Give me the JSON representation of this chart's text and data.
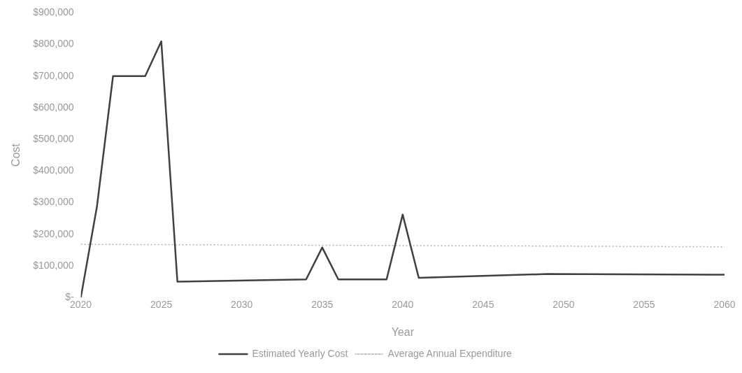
{
  "chart_data": {
    "type": "line",
    "xlabel": "Year",
    "ylabel": "Cost",
    "legend": "bottom",
    "grid": false,
    "marker": "none",
    "xlim": [
      2020,
      2060
    ],
    "xticks": [
      2020,
      2025,
      2030,
      2035,
      2040,
      2045,
      2050,
      2055,
      2060
    ],
    "ylim": [
      0,
      900000
    ],
    "yticks": [
      {
        "value": 0,
        "label": "$-"
      },
      {
        "value": 100000,
        "label": "$100,000"
      },
      {
        "value": 200000,
        "label": "$200,000"
      },
      {
        "value": 300000,
        "label": "$300,000"
      },
      {
        "value": 400000,
        "label": "$400,000"
      },
      {
        "value": 500000,
        "label": "$500,000"
      },
      {
        "value": 600000,
        "label": "$600,000"
      },
      {
        "value": 700000,
        "label": "$700,000"
      },
      {
        "value": 800000,
        "label": "$800,000"
      },
      {
        "value": 900000,
        "label": "$900,000"
      }
    ],
    "series": [
      {
        "name": "Estimated Yearly Cost",
        "color": "#404040",
        "line_style": "solid",
        "x": [
          2020,
          2021,
          2022,
          2024,
          2025,
          2026,
          2034,
          2035,
          2036,
          2039,
          2040,
          2041,
          2049,
          2060
        ],
        "values": [
          0,
          287000,
          700000,
          700000,
          810000,
          50000,
          57000,
          158000,
          57000,
          57000,
          262000,
          62000,
          74000,
          72000
        ]
      },
      {
        "name": "Average Annual Expenditure",
        "color": "#b0b0b0",
        "line_style": "dotted",
        "x": [
          2020,
          2060
        ],
        "values": [
          168000,
          160000
        ]
      }
    ]
  }
}
